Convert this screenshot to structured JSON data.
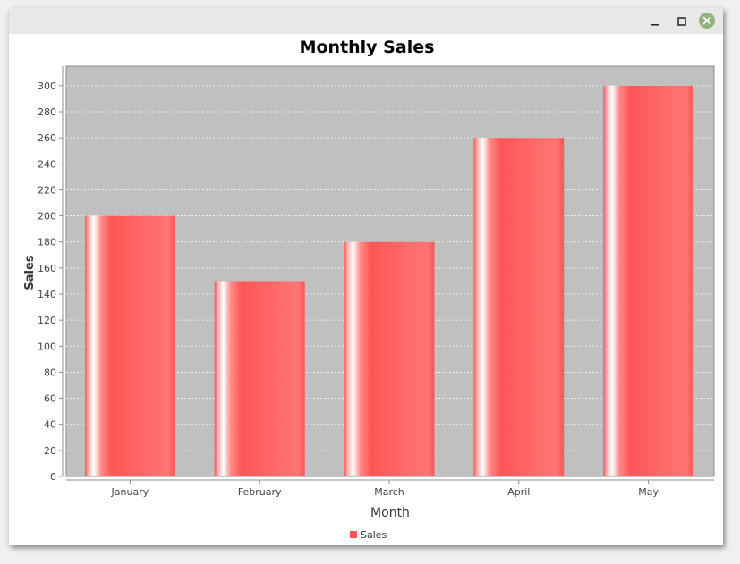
{
  "window": {
    "controls": {
      "minimize_icon": "minimize-icon",
      "maximize_icon": "maximize-icon",
      "close_icon": "close-icon",
      "close_color": "#8fb27a"
    }
  },
  "colors": {
    "plot_background": "#c0c0c0",
    "bar": "#ff5555",
    "bar_highlight": "#ffffff",
    "gridline": "#ffffff"
  },
  "chart_data": {
    "type": "bar",
    "title": "Monthly Sales",
    "xlabel": "Month",
    "ylabel": "Sales",
    "categories": [
      "January",
      "February",
      "March",
      "April",
      "May"
    ],
    "series": [
      {
        "name": "Sales",
        "values": [
          200,
          150,
          180,
          260,
          300
        ]
      }
    ],
    "ylim": [
      0,
      315
    ],
    "yticks": [
      0,
      20,
      40,
      60,
      80,
      100,
      120,
      140,
      160,
      180,
      200,
      220,
      240,
      260,
      280,
      300
    ],
    "grid": true,
    "legend": "bottom"
  }
}
